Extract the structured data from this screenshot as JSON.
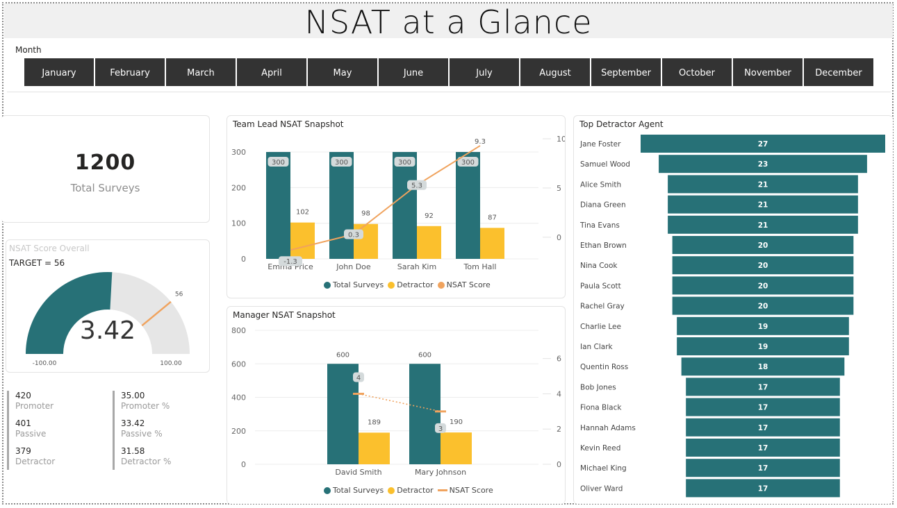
{
  "title": "NSAT at a Glance",
  "month_slicer": {
    "label": "Month",
    "months": [
      "January",
      "February",
      "March",
      "April",
      "May",
      "June",
      "July",
      "August",
      "September",
      "October",
      "November",
      "December"
    ]
  },
  "colors": {
    "teal": "#277177",
    "yellow": "#FBC02D",
    "orange": "#F0A35E",
    "slicer": "#333333",
    "gauge_bg": "#E6E6E6"
  },
  "kpi": {
    "value": "1200",
    "label": "Total Surveys"
  },
  "gauge": {
    "title": "NSAT Score Overall",
    "target_label": "TARGET = 56",
    "value": 3.42,
    "value_text": "3.42",
    "min": -100,
    "max": 100,
    "target": 56,
    "min_text": "-100.00",
    "max_text": "100.00",
    "target_text": "56"
  },
  "stats": [
    {
      "value": "420",
      "label": "Promoter"
    },
    {
      "value": "401",
      "label": "Passive"
    },
    {
      "value": "379",
      "label": "Detractor"
    }
  ],
  "stats_pct": [
    {
      "value": "35.00",
      "label": "Promoter %"
    },
    {
      "value": "33.42",
      "label": "Passive %"
    },
    {
      "value": "31.58",
      "label": "Detractor %"
    }
  ],
  "legend": {
    "total": "Total Surveys",
    "detractor": "Detractor",
    "nsat": "NSAT Score"
  },
  "chart_data": [
    {
      "id": "team_lead",
      "type": "bar",
      "title": "Team Lead NSAT Snapshot",
      "categories": [
        "Emma Price",
        "John Doe",
        "Sarah Kim",
        "Tom Hall"
      ],
      "series": [
        {
          "name": "Total Surveys",
          "values": [
            300,
            300,
            300,
            300
          ]
        },
        {
          "name": "Detractor",
          "values": [
            102,
            98,
            92,
            87
          ]
        },
        {
          "name": "NSAT Score",
          "values": [
            -1.3,
            0.3,
            5.3,
            9.3
          ],
          "type": "line",
          "axis": "right"
        }
      ],
      "y_ticks": [
        "0",
        "100",
        "200",
        "300"
      ],
      "ylim": [
        0,
        300
      ],
      "y2_ticks": [
        "0",
        "5",
        "10"
      ],
      "y2lim": [
        -2.2,
        10
      ],
      "gridlines": true,
      "legend": "bottom"
    },
    {
      "id": "manager",
      "type": "bar",
      "title": "Manager NSAT Snapshot",
      "categories": [
        "David Smith",
        "Mary Johnson"
      ],
      "series": [
        {
          "name": "Total Surveys",
          "values": [
            600,
            600
          ]
        },
        {
          "name": "Detractor",
          "values": [
            189,
            190
          ]
        },
        {
          "name": "NSAT Score",
          "values": [
            4,
            3
          ],
          "type": "line",
          "axis": "right"
        }
      ],
      "y_ticks": [
        "0",
        "200",
        "400",
        "600",
        "800"
      ],
      "ylim": [
        0,
        800
      ],
      "y2_ticks": [
        "0",
        "2",
        "4",
        "6"
      ],
      "y2lim": [
        0,
        6.5
      ],
      "gridlines": true,
      "legend": "bottom"
    },
    {
      "id": "top_detractor",
      "type": "bar",
      "orientation": "horizontal",
      "title": "Top Detractor Agent",
      "categories": [
        "Jane Foster",
        "Samuel Wood",
        "Alice Smith",
        "Diana Green",
        "Tina Evans",
        "Ethan Brown",
        "Nina Cook",
        "Paula Scott",
        "Rachel Gray",
        "Charlie Lee",
        "Ian Clark",
        "Quentin Ross",
        "Bob Jones",
        "Fiona Black",
        "Hannah Adams",
        "Kevin Reed",
        "Michael King",
        "Oliver Ward"
      ],
      "values": [
        27,
        23,
        21,
        21,
        21,
        20,
        20,
        20,
        20,
        19,
        19,
        18,
        17,
        17,
        17,
        17,
        17,
        17
      ]
    }
  ]
}
